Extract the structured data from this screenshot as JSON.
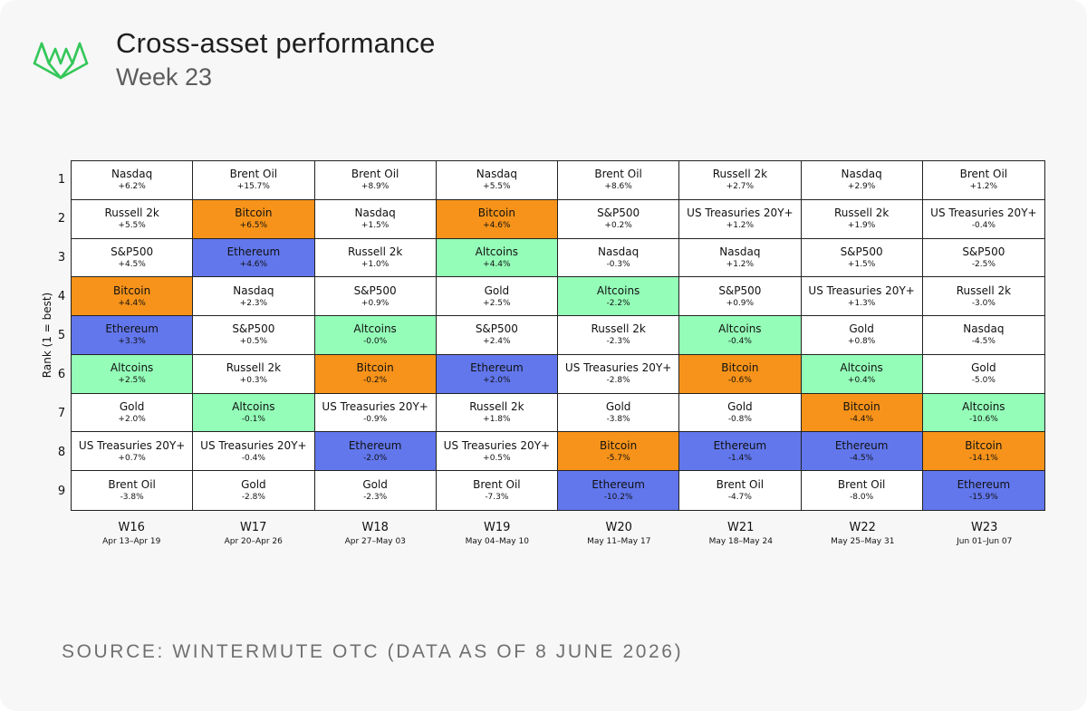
{
  "header": {
    "title": "Cross-asset performance",
    "subtitle": "Week 23"
  },
  "source": "SOURCE: WINTERMUTE OTC (DATA AS OF 8 JUNE 2026)",
  "colors": {
    "brand": "#34c759",
    "Bitcoin": "#f7931a",
    "Ethereum": "#6277ec",
    "Altcoins": "#94fdb8",
    "default": "#ffffff"
  },
  "chart_data": {
    "type": "table",
    "title": "Cross-asset performance",
    "subtitle": "Week 23",
    "ylabel": "Rank (1 = best)",
    "ranks": [
      1,
      2,
      3,
      4,
      5,
      6,
      7,
      8,
      9
    ],
    "weeks": [
      {
        "week": "W16",
        "range": "Apr 13–Apr 19",
        "cells": [
          {
            "asset": "Nasdaq",
            "ret": "+6.2%"
          },
          {
            "asset": "Russell 2k",
            "ret": "+5.5%"
          },
          {
            "asset": "S&P500",
            "ret": "+4.5%"
          },
          {
            "asset": "Bitcoin",
            "ret": "+4.4%"
          },
          {
            "asset": "Ethereum",
            "ret": "+3.3%"
          },
          {
            "asset": "Altcoins",
            "ret": "+2.5%"
          },
          {
            "asset": "Gold",
            "ret": "+2.0%"
          },
          {
            "asset": "US Treasuries 20Y+",
            "ret": "+0.7%"
          },
          {
            "asset": "Brent Oil",
            "ret": "-3.8%"
          }
        ]
      },
      {
        "week": "W17",
        "range": "Apr 20–Apr 26",
        "cells": [
          {
            "asset": "Brent Oil",
            "ret": "+15.7%"
          },
          {
            "asset": "Bitcoin",
            "ret": "+6.5%"
          },
          {
            "asset": "Ethereum",
            "ret": "+4.6%"
          },
          {
            "asset": "Nasdaq",
            "ret": "+2.3%"
          },
          {
            "asset": "S&P500",
            "ret": "+0.5%"
          },
          {
            "asset": "Russell 2k",
            "ret": "+0.3%"
          },
          {
            "asset": "Altcoins",
            "ret": "-0.1%"
          },
          {
            "asset": "US Treasuries 20Y+",
            "ret": "-0.4%"
          },
          {
            "asset": "Gold",
            "ret": "-2.8%"
          }
        ]
      },
      {
        "week": "W18",
        "range": "Apr 27–May 03",
        "cells": [
          {
            "asset": "Brent Oil",
            "ret": "+8.9%"
          },
          {
            "asset": "Nasdaq",
            "ret": "+1.5%"
          },
          {
            "asset": "Russell 2k",
            "ret": "+1.0%"
          },
          {
            "asset": "S&P500",
            "ret": "+0.9%"
          },
          {
            "asset": "Altcoins",
            "ret": "-0.0%"
          },
          {
            "asset": "Bitcoin",
            "ret": "-0.2%"
          },
          {
            "asset": "US Treasuries 20Y+",
            "ret": "-0.9%"
          },
          {
            "asset": "Ethereum",
            "ret": "-2.0%"
          },
          {
            "asset": "Gold",
            "ret": "-2.3%"
          }
        ]
      },
      {
        "week": "W19",
        "range": "May 04–May 10",
        "cells": [
          {
            "asset": "Nasdaq",
            "ret": "+5.5%"
          },
          {
            "asset": "Bitcoin",
            "ret": "+4.6%"
          },
          {
            "asset": "Altcoins",
            "ret": "+4.4%"
          },
          {
            "asset": "Gold",
            "ret": "+2.5%"
          },
          {
            "asset": "S&P500",
            "ret": "+2.4%"
          },
          {
            "asset": "Ethereum",
            "ret": "+2.0%"
          },
          {
            "asset": "Russell 2k",
            "ret": "+1.8%"
          },
          {
            "asset": "US Treasuries 20Y+",
            "ret": "+0.5%"
          },
          {
            "asset": "Brent Oil",
            "ret": "-7.3%"
          }
        ]
      },
      {
        "week": "W20",
        "range": "May 11–May 17",
        "cells": [
          {
            "asset": "Brent Oil",
            "ret": "+8.6%"
          },
          {
            "asset": "S&P500",
            "ret": "+0.2%"
          },
          {
            "asset": "Nasdaq",
            "ret": "-0.3%"
          },
          {
            "asset": "Altcoins",
            "ret": "-2.2%"
          },
          {
            "asset": "Russell 2k",
            "ret": "-2.3%"
          },
          {
            "asset": "US Treasuries 20Y+",
            "ret": "-2.8%"
          },
          {
            "asset": "Gold",
            "ret": "-3.8%"
          },
          {
            "asset": "Bitcoin",
            "ret": "-5.7%"
          },
          {
            "asset": "Ethereum",
            "ret": "-10.2%"
          }
        ]
      },
      {
        "week": "W21",
        "range": "May 18–May 24",
        "cells": [
          {
            "asset": "Russell 2k",
            "ret": "+2.7%"
          },
          {
            "asset": "US Treasuries 20Y+",
            "ret": "+1.2%"
          },
          {
            "asset": "Nasdaq",
            "ret": "+1.2%"
          },
          {
            "asset": "S&P500",
            "ret": "+0.9%"
          },
          {
            "asset": "Altcoins",
            "ret": "-0.4%"
          },
          {
            "asset": "Bitcoin",
            "ret": "-0.6%"
          },
          {
            "asset": "Gold",
            "ret": "-0.8%"
          },
          {
            "asset": "Ethereum",
            "ret": "-1.4%"
          },
          {
            "asset": "Brent Oil",
            "ret": "-4.7%"
          }
        ]
      },
      {
        "week": "W22",
        "range": "May 25–May 31",
        "cells": [
          {
            "asset": "Nasdaq",
            "ret": "+2.9%"
          },
          {
            "asset": "Russell 2k",
            "ret": "+1.9%"
          },
          {
            "asset": "S&P500",
            "ret": "+1.5%"
          },
          {
            "asset": "US Treasuries 20Y+",
            "ret": "+1.3%"
          },
          {
            "asset": "Gold",
            "ret": "+0.8%"
          },
          {
            "asset": "Altcoins",
            "ret": "+0.4%"
          },
          {
            "asset": "Bitcoin",
            "ret": "-4.4%"
          },
          {
            "asset": "Ethereum",
            "ret": "-4.5%"
          },
          {
            "asset": "Brent Oil",
            "ret": "-8.0%"
          }
        ]
      },
      {
        "week": "W23",
        "range": "Jun 01–Jun 07",
        "cells": [
          {
            "asset": "Brent Oil",
            "ret": "+1.2%"
          },
          {
            "asset": "US Treasuries 20Y+",
            "ret": "-0.4%"
          },
          {
            "asset": "S&P500",
            "ret": "-2.5%"
          },
          {
            "asset": "Russell 2k",
            "ret": "-3.0%"
          },
          {
            "asset": "Nasdaq",
            "ret": "-4.5%"
          },
          {
            "asset": "Gold",
            "ret": "-5.0%"
          },
          {
            "asset": "Altcoins",
            "ret": "-10.6%"
          },
          {
            "asset": "Bitcoin",
            "ret": "-14.1%"
          },
          {
            "asset": "Ethereum",
            "ret": "-15.9%"
          }
        ]
      }
    ]
  }
}
